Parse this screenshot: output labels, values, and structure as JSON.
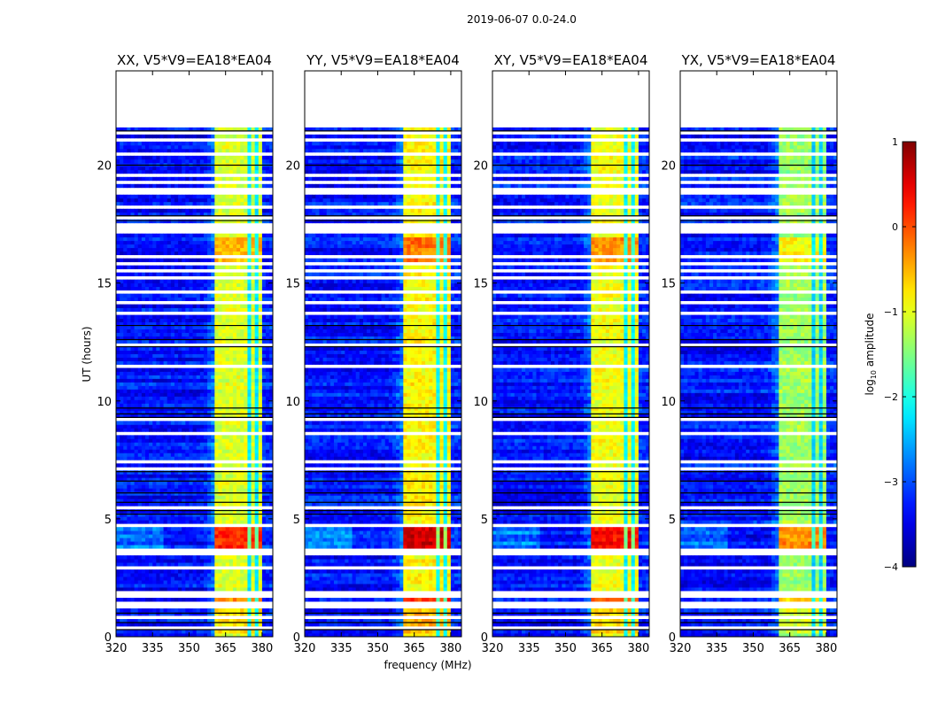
{
  "chart_data": {
    "type": "heatmap",
    "title": "2019-06-07 0.0-24.0",
    "xlabel": "frequency (MHz)",
    "ylabel": "UT (hours)",
    "xlim": [
      320,
      384.4
    ],
    "ylim": [
      0,
      24
    ],
    "xticks": [
      320,
      335,
      350,
      365,
      380
    ],
    "yticks": [
      0,
      5,
      10,
      15,
      20
    ],
    "data_end_hour": 21.6,
    "grid": false,
    "panels": [
      {
        "title": "XX, V5*V9=EA18*EA04",
        "band_level": -1.05,
        "boost_scale": 1.0
      },
      {
        "title": "YY, V5*V9=EA18*EA04",
        "band_level": -0.85,
        "boost_scale": 1.15
      },
      {
        "title": "XY, V5*V9=EA18*EA04",
        "band_level": -0.95,
        "boost_scale": 1.05
      },
      {
        "title": "YX, V5*V9=EA18*EA04",
        "band_level": -1.35,
        "boost_scale": 0.85
      }
    ],
    "background_level": -3.3,
    "rfi_band_mhz": [
      361,
      380.5
    ],
    "channel_dividers_mhz": [
      365,
      369.5,
      374.5,
      378
    ],
    "divider_level": -2.6,
    "bright_windows": [
      {
        "from_hour": 3.7,
        "to_hour": 4.6,
        "boost": 1.25
      },
      {
        "from_hour": 1.5,
        "to_hour": 1.8,
        "boost": 0.8
      },
      {
        "from_hour": 15.9,
        "to_hour": 17.0,
        "boost": 0.55
      },
      {
        "from_hour": 0.1,
        "to_hour": 1.2,
        "boost": 0.3
      }
    ],
    "flagged_hours": [
      0.4,
      0.88,
      1.25,
      1.32,
      1.4,
      1.47,
      1.68,
      1.92,
      2.95,
      3.45,
      3.62,
      4.8,
      5.5,
      7.15,
      7.4,
      8.6,
      9.2,
      11.5,
      12.45,
      13.8,
      14.2,
      14.6,
      15.2,
      15.5,
      15.8,
      16.2,
      17.2,
      17.3,
      17.4,
      17.5,
      17.75,
      18.3,
      18.9,
      19.2,
      19.5,
      20.5,
      21.0,
      21.3
    ],
    "zero_hours": [
      0.3,
      0.6,
      1.0,
      5.2,
      5.35,
      5.7,
      6.1,
      6.6,
      7.0,
      9.3,
      9.45,
      9.7,
      12.3,
      12.6,
      13.2,
      17.65,
      17.85,
      20.0,
      21.45
    ],
    "colorbar": {
      "label_prefix": "log",
      "label_sub": "10",
      "label_suffix": " amplitude",
      "range": [
        -4,
        1
      ],
      "ticks": [
        1,
        0,
        -1,
        -2,
        -3,
        -4
      ],
      "tick_labels": [
        "1",
        "0",
        "−1",
        "−2",
        "−3",
        "−4"
      ],
      "colormap": "jet"
    }
  }
}
